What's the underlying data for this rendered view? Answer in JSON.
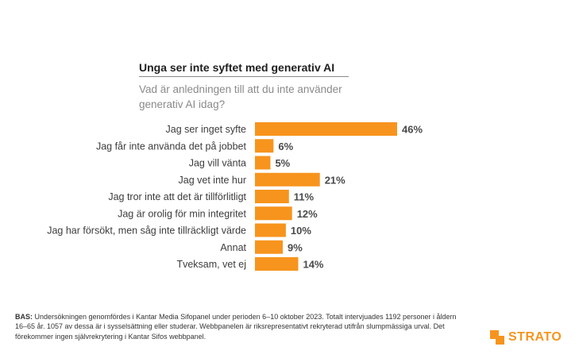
{
  "chart_data": {
    "type": "bar",
    "orientation": "horizontal",
    "title": "Unga ser inte syftet med generativ AI",
    "subtitle": "Vad är anledningen till att du inte använder generativ AI idag?",
    "categories": [
      "Jag ser inget syfte",
      "Jag får inte använda det på jobbet",
      "Jag vill vänta",
      "Jag vet inte hur",
      "Jag tror inte att det är tillförlitligt",
      "Jag är orolig för min integritet",
      "Jag har försökt, men såg inte tillräckligt värde",
      "Annat",
      "Tveksam, vet ej"
    ],
    "values": [
      46,
      6,
      5,
      21,
      11,
      12,
      10,
      9,
      14
    ],
    "value_labels": [
      "46%",
      "6%",
      "5%",
      "21%",
      "11%",
      "12%",
      "10%",
      "9%",
      "14%"
    ],
    "unit": "%",
    "xlim": [
      0,
      46
    ],
    "grid": false,
    "bar_color": "#f7941d"
  },
  "footnote": {
    "label": "BAS:",
    "text": " Undersökningen genomfördes i Kantar Media Sifopanel under perioden 6–10 oktober 2023. Totalt intervjuades 1192 personer i åldern 16–65 år. 1057 av dessa är i sysselsättning eller studerar. Webbpanelen är riksrepresentativt rekryterad utifrån slumpmässiga urval. Det förekommer ingen självrekrytering i Kantar Sifos webbpanel."
  },
  "brand": {
    "name": "STRATO",
    "color": "#f7941d",
    "icon": "strato-logo-icon"
  }
}
